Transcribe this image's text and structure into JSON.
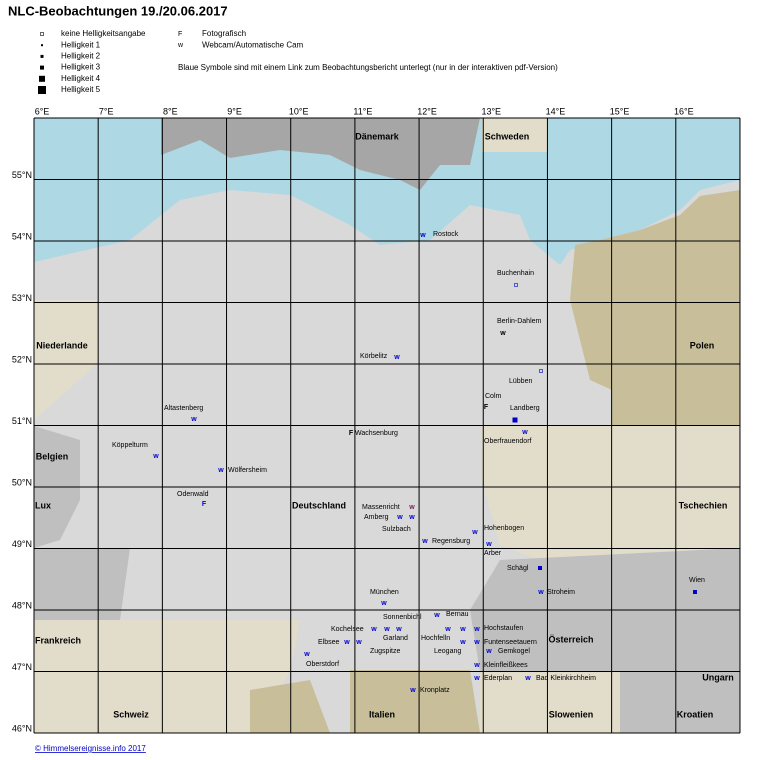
{
  "header": {
    "title": "NLC-Beobachtungen 19./20.06.2017"
  },
  "legend": {
    "brightness": [
      "keine Helligkeitsangabe",
      "Helligkeit 1",
      "Helligkeit 2",
      "Helligkeit 3",
      "Helligkeit 4",
      "Helligkeit 5"
    ],
    "types": [
      {
        "symbol": "F",
        "label": "Fotografisch"
      },
      {
        "symbol": "w",
        "label": "Webcam/Automatische Cam"
      }
    ],
    "note": "Blaue Symbole sind mit einem Link zum Beobachtungsbericht unterlegt  (nur in der interaktiven pdf-Version)"
  },
  "map": {
    "lon_labels": [
      "6°E",
      "7°E",
      "8°E",
      "9°E",
      "10°E",
      "11°E",
      "12°E",
      "13°E",
      "14°E",
      "15°E",
      "16°E"
    ],
    "lat_labels": [
      "55°N",
      "54°N",
      "53°N",
      "52°N",
      "51°N",
      "50°N",
      "49°N",
      "48°N",
      "47°N",
      "46°N"
    ],
    "countries": [
      "Dänemark",
      "Schweden",
      "Niederlande",
      "Polen",
      "Belgien",
      "Lux",
      "Deutschland",
      "Tschechien",
      "Frankreich",
      "Österreich",
      "Ungarn",
      "Schweiz",
      "Italien",
      "Slowenien",
      "Kroatien"
    ],
    "stations": [
      "Rostock",
      "Buchenhain",
      "Berlin-Dahlem",
      "Körbelitz",
      "Lübben",
      "Colm",
      "Landberg",
      "Altastenberg",
      "Wachsenburg",
      "Oberfrauendorf",
      "Köppelturm",
      "Wölfersheim",
      "Odenwald",
      "Massenricht",
      "Amberg",
      "Sulzbach",
      "Hohenbogen",
      "Regensburg",
      "Arber",
      "Schägl",
      "Stroheim",
      "Wien",
      "München",
      "Sonnenbichl",
      "Bernau",
      "Kochelsee",
      "Hochstaufen",
      "Garland",
      "Elbsee",
      "Hochfelln",
      "Funtenseetauern",
      "Gemkogel",
      "Zugspitze",
      "Leogang",
      "Oberstdorf",
      "Kleinfleißkees",
      "Ederplan",
      "Bad Kleinkirchheim",
      "Kronplatz"
    ],
    "symbols": [
      "w",
      "w",
      "w",
      "F",
      "w",
      "F",
      "w",
      "w",
      "w",
      "F",
      "w",
      "w",
      "w",
      "w",
      "w",
      "w",
      "w",
      "w",
      "w",
      "w",
      "w",
      "w",
      "w",
      "w",
      "w",
      "w",
      "w",
      "w",
      "w",
      "w",
      "w",
      "w",
      "w",
      "w",
      "w"
    ]
  },
  "footer": "© Himmelsereignisse.info 2017"
}
